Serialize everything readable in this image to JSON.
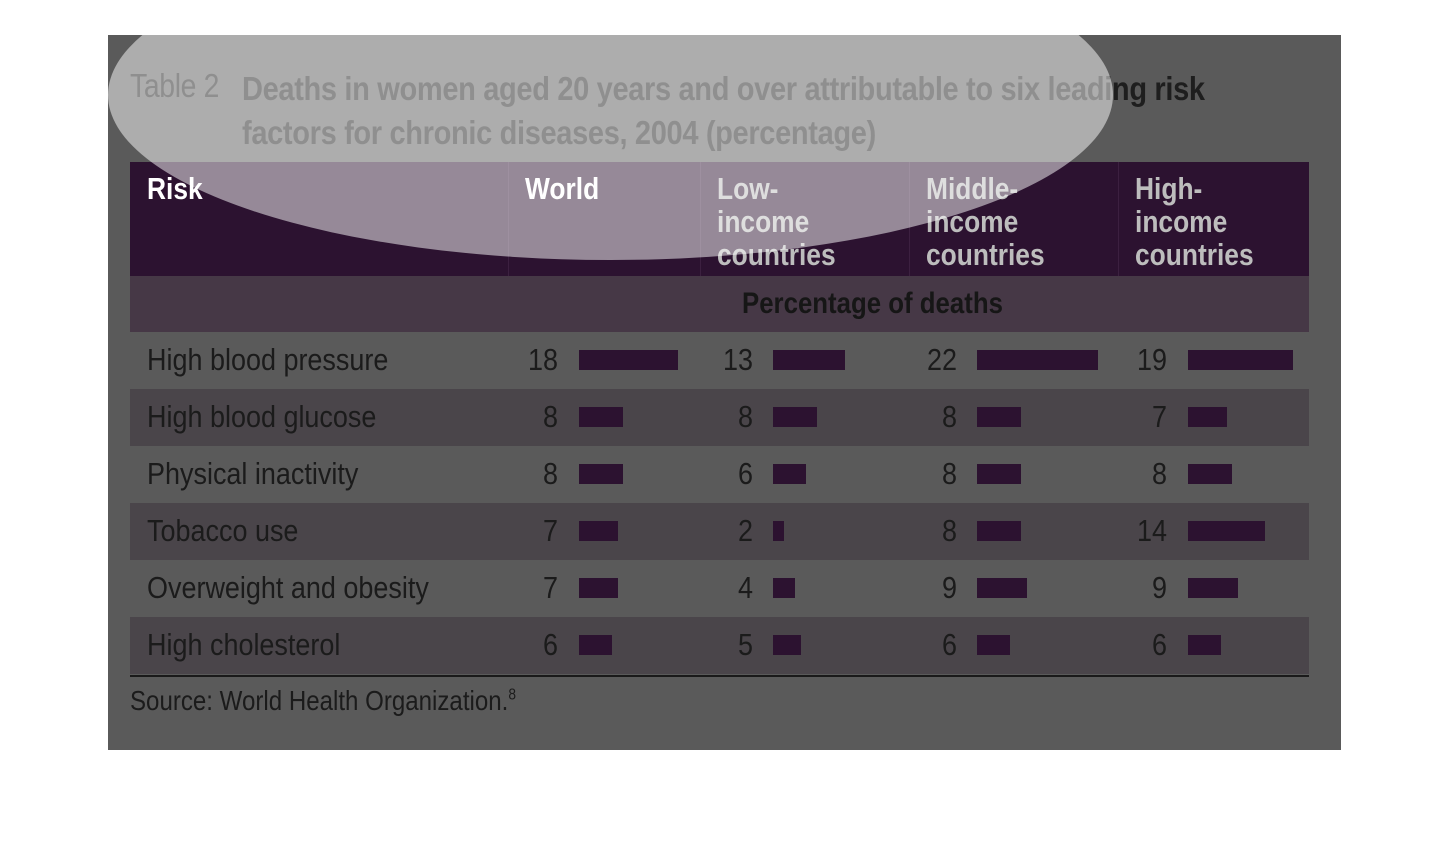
{
  "title": {
    "number": "Table 2",
    "text": "Deaths in women aged 20 years and over attributable to six leading risk factors for chronic diseases, 2004 (percentage)"
  },
  "chart_data": {
    "type": "table",
    "columns": [
      "Risk",
      "World",
      "Low-income countries",
      "Middle-income countries",
      "High-income countries"
    ],
    "column_labels": [
      "Risk",
      "World",
      "Low-income\ncountries",
      "Middle-\nincome\ncountries",
      "High-\nincome\ncountries"
    ],
    "subheader": "Percentage of deaths",
    "rows": [
      {
        "risk": "High blood pressure",
        "values": [
          18,
          13,
          22,
          19
        ]
      },
      {
        "risk": "High blood glucose",
        "values": [
          8,
          8,
          8,
          7
        ]
      },
      {
        "risk": "Physical inactivity",
        "values": [
          8,
          6,
          8,
          8
        ]
      },
      {
        "risk": "Tobacco use",
        "values": [
          7,
          2,
          8,
          14
        ]
      },
      {
        "risk": "Overweight and obesity",
        "values": [
          7,
          4,
          9,
          9
        ]
      },
      {
        "risk": "High cholesterol",
        "values": [
          6,
          5,
          6,
          6
        ]
      }
    ],
    "bar_color": "#2c1230"
  },
  "source": {
    "text": "Source: World Health Organization.",
    "ref": "8"
  },
  "colors": {
    "header_bg": "#2c1230",
    "subheader_bg": "#463846",
    "row_bg": "#5a5a5a",
    "row_alt_bg": "#4a454a",
    "highlight": "#c040c0"
  }
}
